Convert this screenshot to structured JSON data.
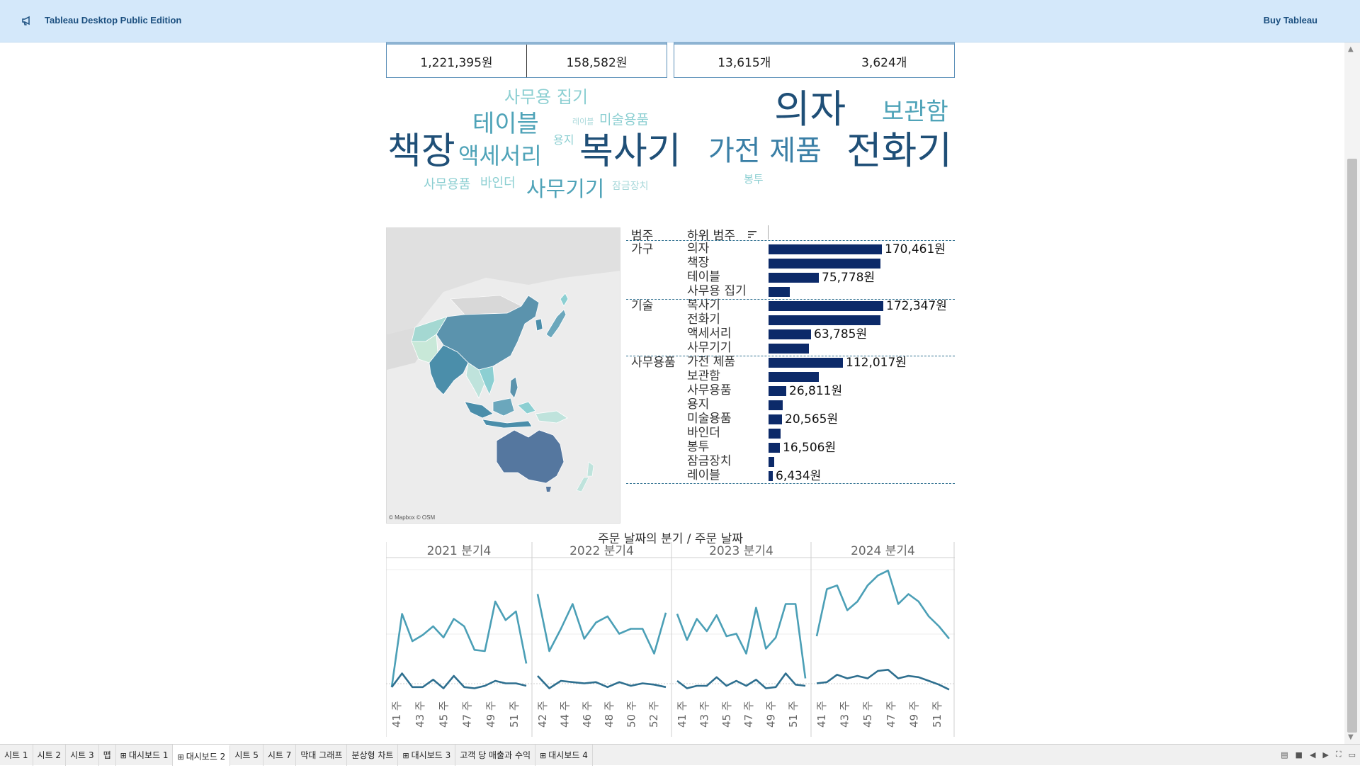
{
  "app": {
    "title": "Tableau Desktop Public Edition",
    "buy_label": "Buy Tableau"
  },
  "kpis": {
    "group1": [
      "1,221,395원",
      "158,582원"
    ],
    "group2": [
      "13,615개",
      "3,624개"
    ]
  },
  "word_cloud": {
    "words": [
      "사무용 집기",
      "테이블",
      "레이블",
      "미술용품",
      "용지",
      "의자",
      "보관함",
      "책장",
      "액세서리",
      "복사기",
      "가전 제품",
      "전화기",
      "봉투",
      "사무용품",
      "바인더",
      "사무기기",
      "잠금장치"
    ],
    "colors": [
      "#1f4f77",
      "#3a7fa6",
      "#4fa3b8",
      "#8ccfd2"
    ]
  },
  "map": {
    "credit": "© Mapbox © OSM"
  },
  "bar_table": {
    "header_category": "범주",
    "header_subcategory": "하위 범주",
    "groups": [
      {
        "category": "가구",
        "rows": [
          {
            "sub": "의자",
            "value": 170461,
            "label": "170,461원"
          },
          {
            "sub": "책장",
            "value": 168000,
            "label": ""
          },
          {
            "sub": "테이블",
            "value": 75778,
            "label": "75,778원"
          },
          {
            "sub": "사무용 집기",
            "value": 32000,
            "label": ""
          }
        ]
      },
      {
        "category": "기술",
        "rows": [
          {
            "sub": "복사기",
            "value": 172347,
            "label": "172,347원"
          },
          {
            "sub": "전화기",
            "value": 168000,
            "label": ""
          },
          {
            "sub": "액세서리",
            "value": 63785,
            "label": "63,785원"
          },
          {
            "sub": "사무기기",
            "value": 61000,
            "label": ""
          }
        ]
      },
      {
        "category": "사무용품",
        "rows": [
          {
            "sub": "가전 제품",
            "value": 112017,
            "label": "112,017원"
          },
          {
            "sub": "보관함",
            "value": 76000,
            "label": ""
          },
          {
            "sub": "사무용품",
            "value": 26811,
            "label": "26,811원"
          },
          {
            "sub": "용지",
            "value": 21000,
            "label": ""
          },
          {
            "sub": "미술용품",
            "value": 20565,
            "label": "20,565원"
          },
          {
            "sub": "바인더",
            "value": 18500,
            "label": ""
          },
          {
            "sub": "봉투",
            "value": 16506,
            "label": "16,506원"
          },
          {
            "sub": "잠금장치",
            "value": 9000,
            "label": ""
          },
          {
            "sub": "레이블",
            "value": 6434,
            "label": "6,434원"
          }
        ]
      }
    ],
    "bar_color": "#0c2a69"
  },
  "chart_data": {
    "type": "line",
    "title": "주문 날짜의 분기 / 주문 날짜",
    "panels": [
      {
        "name": "2021 분기4",
        "ticks": [
          "41 주",
          "43 주",
          "45 주",
          "47 주",
          "49 주",
          "51 주"
        ],
        "series": [
          {
            "values": [
              0.03,
              0.62,
              0.4,
              0.45,
              0.52,
              0.43,
              0.58,
              0.52,
              0.33,
              0.32,
              0.72,
              0.57,
              0.64,
              0.22
            ]
          },
          {
            "values": [
              0.03,
              0.14,
              0.03,
              0.03,
              0.09,
              0.02,
              0.12,
              0.03,
              0.02,
              0.04,
              0.08,
              0.06,
              0.06,
              0.04
            ]
          }
        ]
      },
      {
        "name": "2022 분기4",
        "ticks": [
          "42 주",
          "44 주",
          "46 주",
          "48 주",
          "50 주",
          "52 주"
        ],
        "series": [
          {
            "values": [
              0.78,
              0.32,
              0.5,
              0.7,
              0.42,
              0.55,
              0.6,
              0.46,
              0.5,
              0.5,
              0.3,
              0.63
            ]
          },
          {
            "values": [
              0.12,
              0.02,
              0.08,
              0.07,
              0.06,
              0.07,
              0.03,
              0.07,
              0.04,
              0.06,
              0.05,
              0.03
            ]
          }
        ]
      },
      {
        "name": "2023 분기4",
        "ticks": [
          "41 주",
          "43 주",
          "45 주",
          "47 주",
          "49 주",
          "51 주"
        ],
        "series": [
          {
            "values": [
              0.62,
              0.41,
              0.58,
              0.48,
              0.61,
              0.44,
              0.46,
              0.3,
              0.67,
              0.34,
              0.43,
              0.7,
              0.7,
              0.1
            ]
          },
          {
            "values": [
              0.08,
              0.02,
              0.04,
              0.04,
              0.11,
              0.04,
              0.08,
              0.04,
              0.09,
              0.02,
              0.03,
              0.14,
              0.05,
              0.04
            ]
          }
        ]
      },
      {
        "name": "2024 분기4",
        "ticks": [
          "41 주",
          "43 주",
          "45 주",
          "47 주",
          "49 주",
          "51 주"
        ],
        "series": [
          {
            "values": [
              0.44,
              0.82,
              0.85,
              0.65,
              0.72,
              0.85,
              0.93,
              0.97,
              0.7,
              0.78,
              0.72,
              0.6,
              0.52,
              0.42
            ]
          },
          {
            "values": [
              0.06,
              0.07,
              0.13,
              0.1,
              0.12,
              0.1,
              0.16,
              0.17,
              0.1,
              0.12,
              0.11,
              0.08,
              0.05,
              0.01
            ]
          }
        ]
      }
    ],
    "series_colors": [
      "#4b9fb6",
      "#2e6f8f"
    ],
    "ylim": [
      0,
      1
    ]
  },
  "tabs": [
    "시트 1",
    "시트 2",
    "시트 3",
    "맵",
    "대시보드 1",
    "대시보드 2",
    "시트 5",
    "시트 7",
    "막대 그래프",
    "분상형 차트",
    "대시보드 3",
    "고객 당 매출과 수익",
    "대시보드 4"
  ],
  "tabs_dashboard": [
    false,
    false,
    false,
    false,
    true,
    true,
    false,
    false,
    false,
    false,
    true,
    false,
    true
  ],
  "active_tab_index": 5
}
